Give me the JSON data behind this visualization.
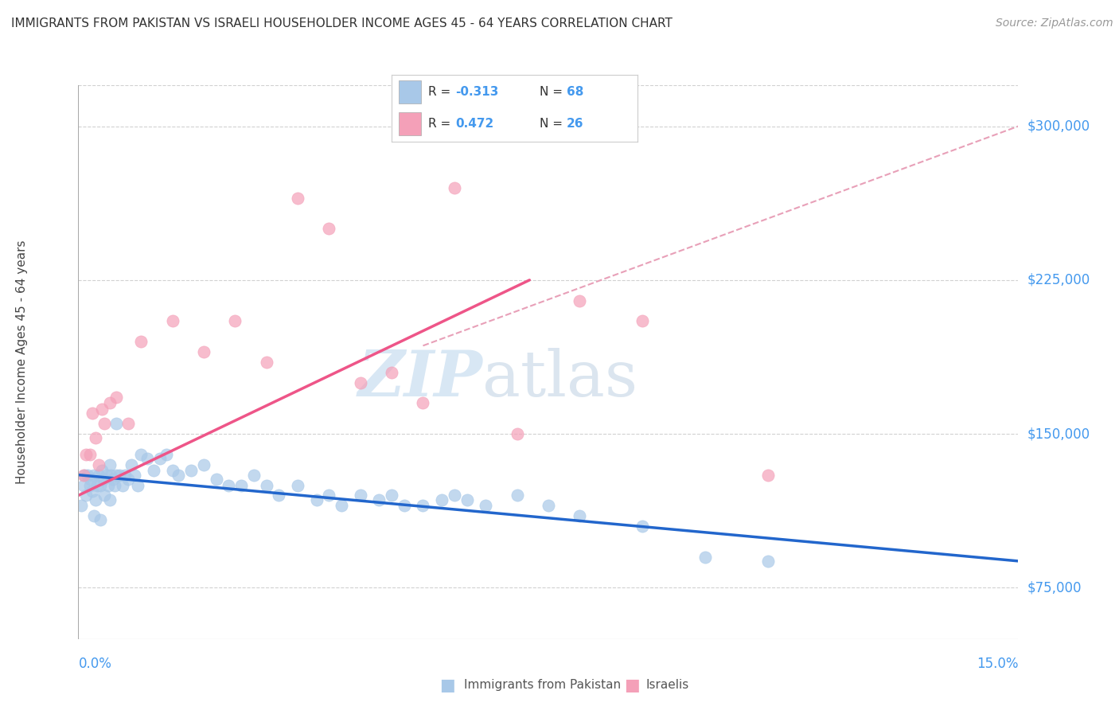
{
  "title": "IMMIGRANTS FROM PAKISTAN VS ISRAELI HOUSEHOLDER INCOME AGES 45 - 64 YEARS CORRELATION CHART",
  "source": "Source: ZipAtlas.com",
  "ylabel": "Householder Income Ages 45 - 64 years",
  "ylabel_ticks": [
    "$75,000",
    "$150,000",
    "$225,000",
    "$300,000"
  ],
  "ylabel_values": [
    75000,
    150000,
    225000,
    300000
  ],
  "xmin": 0.0,
  "xmax": 15.0,
  "ymin": 50000,
  "ymax": 320000,
  "blue_color": "#a8c8e8",
  "pink_color": "#f4a0b8",
  "blue_line_color": "#2266cc",
  "pink_line_color": "#ee5588",
  "dashed_line_color": "#e8a0b8",
  "blue_label": "Immigrants from Pakistan",
  "pink_label": "Israelis",
  "blue_scatter_x": [
    0.05,
    0.08,
    0.1,
    0.12,
    0.15,
    0.18,
    0.2,
    0.22,
    0.25,
    0.28,
    0.3,
    0.32,
    0.35,
    0.38,
    0.4,
    0.42,
    0.45,
    0.48,
    0.5,
    0.52,
    0.55,
    0.58,
    0.6,
    0.65,
    0.7,
    0.75,
    0.8,
    0.85,
    0.9,
    0.95,
    1.0,
    1.1,
    1.2,
    1.3,
    1.4,
    1.5,
    1.6,
    1.8,
    2.0,
    2.2,
    2.4,
    2.6,
    2.8,
    3.0,
    3.2,
    3.5,
    3.8,
    4.0,
    4.2,
    4.5,
    4.8,
    5.0,
    5.2,
    5.5,
    5.8,
    6.0,
    6.2,
    6.5,
    7.0,
    7.5,
    8.0,
    9.0,
    10.0,
    11.0,
    0.25,
    0.35,
    0.5,
    0.6
  ],
  "blue_scatter_y": [
    115000,
    125000,
    130000,
    120000,
    130000,
    125000,
    128000,
    122000,
    130000,
    118000,
    125000,
    130000,
    125000,
    132000,
    128000,
    120000,
    130000,
    125000,
    135000,
    130000,
    128000,
    125000,
    130000,
    130000,
    125000,
    130000,
    128000,
    135000,
    130000,
    125000,
    140000,
    138000,
    132000,
    138000,
    140000,
    132000,
    130000,
    132000,
    135000,
    128000,
    125000,
    125000,
    130000,
    125000,
    120000,
    125000,
    118000,
    120000,
    115000,
    120000,
    118000,
    120000,
    115000,
    115000,
    118000,
    120000,
    118000,
    115000,
    120000,
    115000,
    110000,
    105000,
    90000,
    88000,
    110000,
    108000,
    118000,
    155000
  ],
  "pink_scatter_x": [
    0.08,
    0.12,
    0.18,
    0.22,
    0.28,
    0.32,
    0.38,
    0.42,
    0.5,
    0.6,
    0.8,
    1.0,
    1.5,
    2.0,
    2.5,
    3.0,
    3.5,
    4.0,
    4.5,
    5.0,
    5.5,
    6.0,
    7.0,
    8.0,
    9.0,
    11.0
  ],
  "pink_scatter_y": [
    130000,
    140000,
    140000,
    160000,
    148000,
    135000,
    162000,
    155000,
    165000,
    168000,
    155000,
    195000,
    205000,
    190000,
    205000,
    185000,
    265000,
    250000,
    175000,
    180000,
    165000,
    270000,
    150000,
    215000,
    205000,
    130000
  ],
  "blue_trend_x": [
    0.0,
    15.0
  ],
  "blue_trend_y": [
    130000,
    88000
  ],
  "pink_trend_x": [
    0.0,
    7.2
  ],
  "pink_trend_y": [
    120000,
    225000
  ],
  "dashed_trend_x": [
    5.5,
    15.0
  ],
  "dashed_trend_y": [
    193000,
    300000
  ],
  "watermark_zip": "ZIP",
  "watermark_atlas": "atlas",
  "grid_color": "#cccccc",
  "tick_color": "#4499ee"
}
